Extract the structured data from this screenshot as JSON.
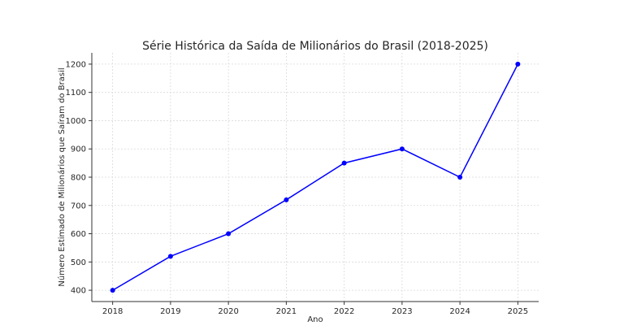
{
  "chart_data": {
    "type": "line",
    "title": "Série Histórica da Saída de Milionários do Brasil (2018-2025)",
    "xlabel": "Ano",
    "ylabel": "Número Estimado de Milionários que Saíram do Brasil",
    "categories": [
      "2018",
      "2019",
      "2020",
      "2021",
      "2022",
      "2023",
      "2024",
      "2025"
    ],
    "x": [
      2018,
      2019,
      2020,
      2021,
      2022,
      2023,
      2024,
      2025
    ],
    "values": [
      400,
      520,
      600,
      720,
      850,
      900,
      800,
      1200
    ],
    "series": [
      {
        "name": "Saída de Milionários",
        "values": [
          400,
          520,
          600,
          720,
          850,
          900,
          800,
          1200
        ],
        "color": "#0000ff",
        "marker": "circle"
      }
    ],
    "yticks": [
      400,
      500,
      600,
      700,
      800,
      900,
      1000,
      1100,
      1200
    ],
    "ylim": [
      360,
      1240
    ],
    "xlim": [
      2017.64,
      2025.36
    ],
    "grid": true,
    "legend": null
  }
}
